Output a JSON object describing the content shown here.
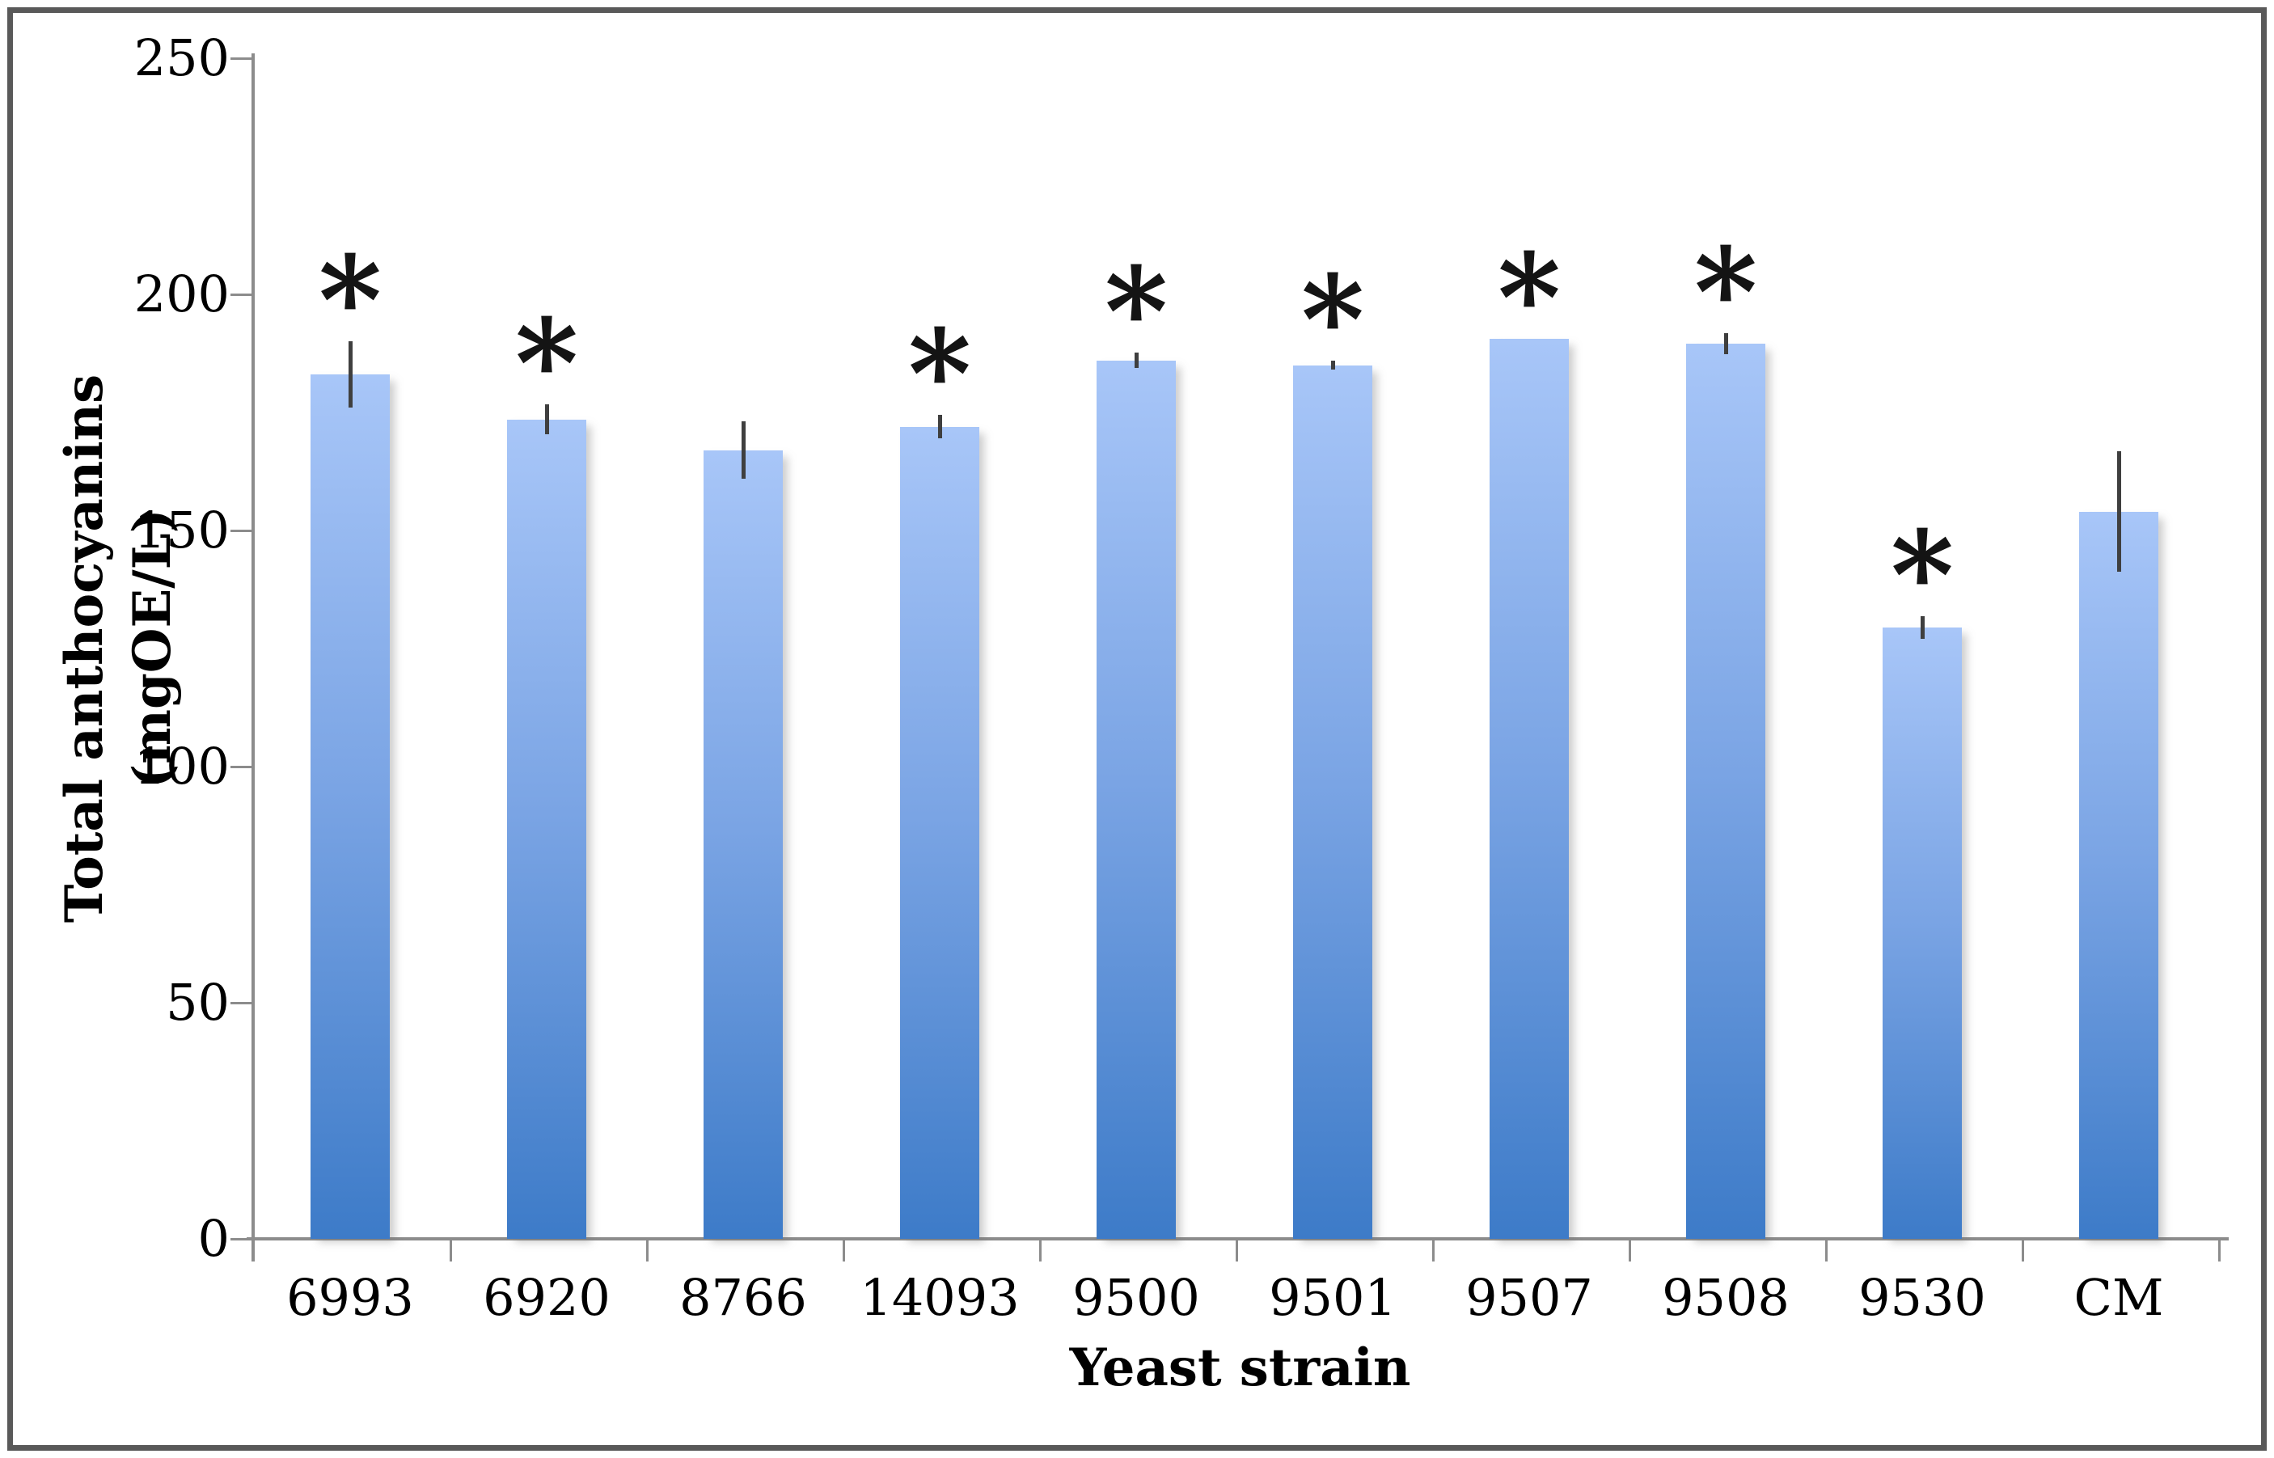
{
  "figure": {
    "background": "#ffffff",
    "frame_color": "#595959"
  },
  "chart_data": {
    "type": "bar",
    "title": "",
    "xlabel": "Yeast strain",
    "ylabel": "Total anthocyanins (mgOE/L)",
    "categories": [
      "6993",
      "6920",
      "8766",
      "14093",
      "9500",
      "9501",
      "9507",
      "9508",
      "9530",
      "CM"
    ],
    "values": [
      183,
      173.5,
      167,
      172,
      186,
      185,
      190.5,
      189.5,
      129.5,
      154
    ],
    "error_bars": [
      7,
      3.2,
      6.1,
      2.5,
      1.6,
      1,
      0,
      2.2,
      2.4,
      12.8
    ],
    "significance": [
      true,
      true,
      false,
      true,
      true,
      true,
      true,
      true,
      true,
      false
    ],
    "significance_symbol": "*",
    "ylim": [
      0,
      250
    ],
    "yticks": [
      0,
      50,
      100,
      150,
      200,
      250
    ],
    "grid": false,
    "legend": "none",
    "bar_color_top": "#A8C6F8",
    "bar_color_mid": "#7AA4E4",
    "bar_color_bottom": "#3D7BC8",
    "error_bar_color": "#3F3F3F",
    "axis_color": "#8C8C8C",
    "text_color": "#000000"
  }
}
